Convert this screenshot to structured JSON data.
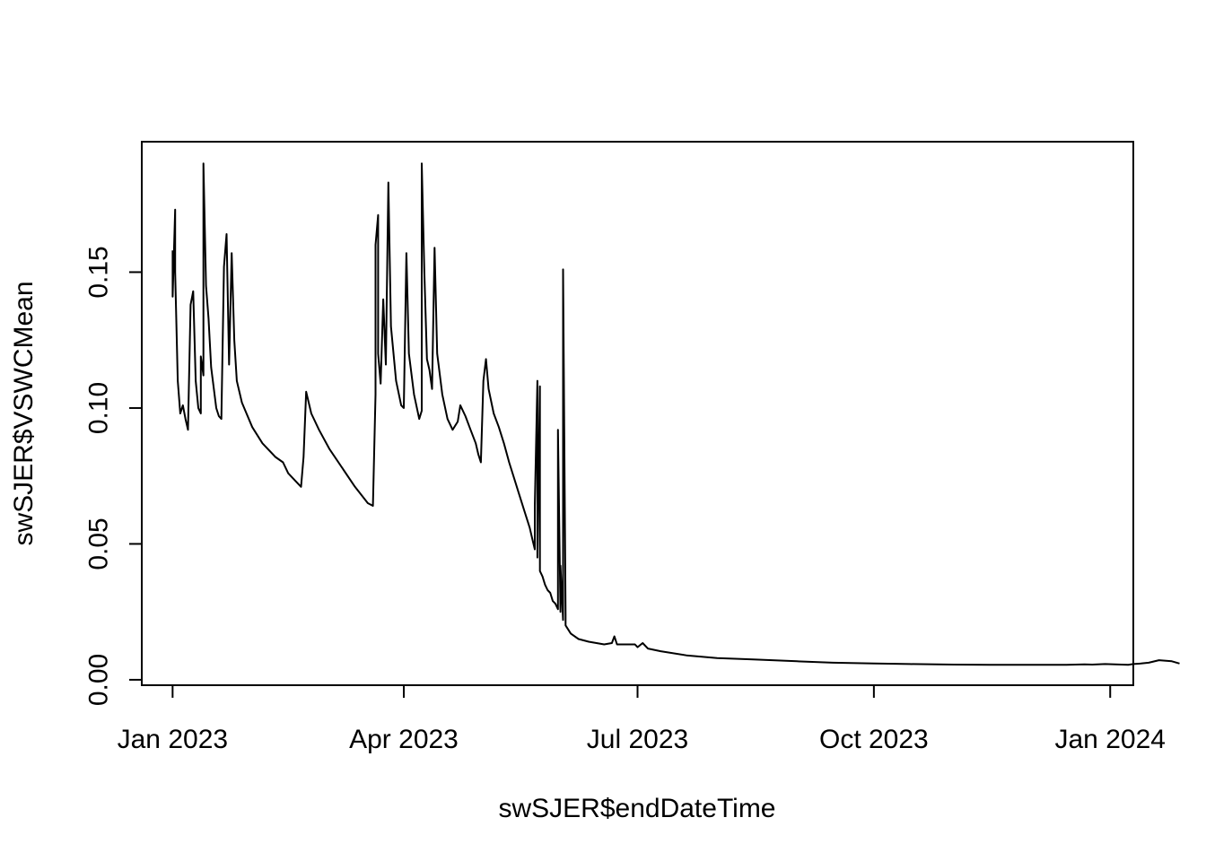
{
  "chart_data": {
    "type": "line",
    "title": "",
    "xlabel": "swSJER$endDateTime",
    "ylabel": "swSJER$VSWCMean",
    "xlim": [
      "2022-12-20",
      "2024-01-10"
    ],
    "ylim": [
      -0.002,
      0.198
    ],
    "grid": false,
    "legend": "none",
    "line_color": "#000000",
    "x_ticks": [
      {
        "date": "2023-01-01",
        "label": "Jan 2023"
      },
      {
        "date": "2023-04-01",
        "label": "Apr 2023"
      },
      {
        "date": "2023-07-01",
        "label": "Jul 2023"
      },
      {
        "date": "2023-10-01",
        "label": "Oct 2023"
      },
      {
        "date": "2024-01-01",
        "label": "Jan 2024"
      }
    ],
    "y_ticks": [
      {
        "value": 0.0,
        "label": "0.00"
      },
      {
        "value": 0.05,
        "label": "0.05"
      },
      {
        "value": 0.1,
        "label": "0.10"
      },
      {
        "value": 0.15,
        "label": "0.15"
      }
    ],
    "series": [
      {
        "segments": [
          [
            [
              "2023-01-01",
              0.158
            ],
            [
              "2023-01-01",
              0.141
            ],
            [
              "2023-01-02",
              0.173
            ],
            [
              "2023-01-02",
              0.15
            ],
            [
              "2023-01-03",
              0.11
            ],
            [
              "2023-01-04",
              0.098
            ],
            [
              "2023-01-05",
              0.101
            ],
            [
              "2023-01-06",
              0.096
            ],
            [
              "2023-01-07",
              0.092
            ],
            [
              "2023-01-08",
              0.138
            ],
            [
              "2023-01-09",
              0.143
            ],
            [
              "2023-01-10",
              0.11
            ],
            [
              "2023-01-11",
              0.1
            ],
            [
              "2023-01-12",
              0.098
            ],
            [
              "2023-01-12",
              0.119
            ],
            [
              "2023-01-13",
              0.112
            ],
            [
              "2023-01-13",
              0.19
            ],
            [
              "2023-01-14",
              0.145
            ],
            [
              "2023-01-15",
              0.133
            ],
            [
              "2023-01-16",
              0.115
            ],
            [
              "2023-01-18",
              0.1
            ],
            [
              "2023-01-19",
              0.097
            ],
            [
              "2023-01-20",
              0.096
            ],
            [
              "2023-01-21",
              0.152
            ],
            [
              "2023-01-22",
              0.164
            ],
            [
              "2023-01-23",
              0.116
            ],
            [
              "2023-01-24",
              0.157
            ],
            [
              "2023-01-25",
              0.125
            ],
            [
              "2023-01-26",
              0.11
            ],
            [
              "2023-01-28",
              0.102
            ],
            [
              "2023-02-01",
              0.093
            ],
            [
              "2023-02-05",
              0.087
            ],
            [
              "2023-02-10",
              0.082
            ],
            [
              "2023-02-13",
              0.08
            ],
            [
              "2023-02-15",
              0.076
            ],
            [
              "2023-02-18",
              0.073
            ],
            [
              "2023-02-20",
              0.071
            ],
            [
              "2023-02-21",
              0.082
            ],
            [
              "2023-02-22",
              0.106
            ],
            [
              "2023-02-24",
              0.098
            ],
            [
              "2023-02-27",
              0.092
            ],
            [
              "2023-03-03",
              0.085
            ],
            [
              "2023-03-08",
              0.078
            ],
            [
              "2023-03-13",
              0.071
            ],
            [
              "2023-03-18",
              0.065
            ],
            [
              "2023-03-20",
              0.064
            ],
            [
              "2023-03-21",
              0.105
            ],
            [
              "2023-03-21",
              0.16
            ],
            [
              "2023-03-22",
              0.171
            ],
            [
              "2023-03-22",
              0.12
            ],
            [
              "2023-03-23",
              0.109
            ],
            [
              "2023-03-24",
              0.14
            ],
            [
              "2023-03-25",
              0.116
            ],
            [
              "2023-03-26",
              0.183
            ],
            [
              "2023-03-27",
              0.13
            ],
            [
              "2023-03-29",
              0.11
            ],
            [
              "2023-03-31",
              0.101
            ],
            [
              "2023-04-01",
              0.1
            ],
            [
              "2023-04-02",
              0.157
            ],
            [
              "2023-04-03",
              0.12
            ],
            [
              "2023-04-05",
              0.105
            ],
            [
              "2023-04-07",
              0.096
            ],
            [
              "2023-04-08",
              0.099
            ],
            [
              "2023-04-08",
              0.19
            ],
            [
              "2023-04-09",
              0.15
            ],
            [
              "2023-04-10",
              0.118
            ],
            [
              "2023-04-11",
              0.114
            ],
            [
              "2023-04-12",
              0.107
            ],
            [
              "2023-04-13",
              0.159
            ],
            [
              "2023-04-14",
              0.12
            ],
            [
              "2023-04-16",
              0.105
            ],
            [
              "2023-04-18",
              0.096
            ],
            [
              "2023-04-20",
              0.092
            ],
            [
              "2023-04-22",
              0.095
            ],
            [
              "2023-04-23",
              0.101
            ],
            [
              "2023-04-25",
              0.097
            ],
            [
              "2023-04-27",
              0.092
            ],
            [
              "2023-04-29",
              0.087
            ],
            [
              "2023-04-30",
              0.083
            ],
            [
              "2023-05-01",
              0.08
            ],
            [
              "2023-05-02",
              0.11
            ],
            [
              "2023-05-03",
              0.118
            ],
            [
              "2023-05-04",
              0.107
            ],
            [
              "2023-05-06",
              0.098
            ],
            [
              "2023-05-08",
              0.093
            ],
            [
              "2023-05-10",
              0.087
            ],
            [
              "2023-05-12",
              0.08
            ],
            [
              "2023-05-14",
              0.074
            ],
            [
              "2023-05-16",
              0.068
            ],
            [
              "2023-05-18",
              0.062
            ],
            [
              "2023-05-20",
              0.056
            ],
            [
              "2023-05-21",
              0.052
            ],
            [
              "2023-05-22",
              0.048
            ],
            [
              "2023-05-22",
              0.064
            ],
            [
              "2023-05-23",
              0.11
            ],
            [
              "2023-05-23",
              0.045
            ],
            [
              "2023-05-24",
              0.108
            ],
            [
              "2023-05-24",
              0.04
            ],
            [
              "2023-05-25",
              0.038
            ],
            [
              "2023-05-26",
              0.035
            ],
            [
              "2023-05-27",
              0.033
            ],
            [
              "2023-05-28",
              0.032
            ],
            [
              "2023-05-29",
              0.029
            ],
            [
              "2023-05-30",
              0.028
            ],
            [
              "2023-05-31",
              0.026
            ],
            [
              "2023-05-31",
              0.092
            ],
            [
              "2023-06-01",
              0.025
            ],
            [
              "2023-06-01",
              0.042
            ],
            [
              "2023-06-02",
              0.022
            ],
            [
              "2023-06-02",
              0.151
            ],
            [
              "2023-06-03",
              0.024
            ],
            [
              "2023-06-03",
              0.02
            ],
            [
              "2023-06-05",
              0.017
            ],
            [
              "2023-06-08",
              0.015
            ],
            [
              "2023-06-12",
              0.014
            ],
            [
              "2023-06-18",
              0.013
            ],
            [
              "2023-06-21",
              0.0135
            ],
            [
              "2023-06-22",
              0.016
            ],
            [
              "2023-06-23",
              0.013
            ],
            [
              "2023-06-30",
              0.013
            ],
            [
              "2023-07-01",
              0.012
            ],
            [
              "2023-07-03",
              0.0135
            ],
            [
              "2023-07-05",
              0.0115
            ],
            [
              "2023-07-10",
              0.0105
            ],
            [
              "2023-07-20",
              0.009
            ],
            [
              "2023-08-01",
              0.008
            ],
            [
              "2023-08-15",
              0.0075
            ],
            [
              "2023-09-01",
              0.0068
            ],
            [
              "2023-09-15",
              0.0063
            ],
            [
              "2023-10-01",
              0.006
            ],
            [
              "2023-10-15",
              0.0058
            ],
            [
              "2023-11-01",
              0.0056
            ],
            [
              "2023-11-15",
              0.0055
            ],
            [
              "2023-12-01",
              0.0055
            ],
            [
              "2023-12-15",
              0.0055
            ],
            [
              "2023-12-22",
              0.0057
            ],
            [
              "2023-12-25",
              0.0056
            ],
            [
              "2023-12-30",
              0.0058
            ],
            [
              "2024-01-08",
              0.0055
            ],
            [
              "2024-01-10",
              0.0058
            ],
            [
              "2024-01-13",
              0.006
            ],
            [
              "2024-01-16",
              0.0063
            ],
            [
              "2024-01-20",
              0.0072
            ],
            [
              "2024-01-25",
              0.0068
            ],
            [
              "2024-01-28",
              0.006
            ]
          ]
        ]
      }
    ]
  }
}
